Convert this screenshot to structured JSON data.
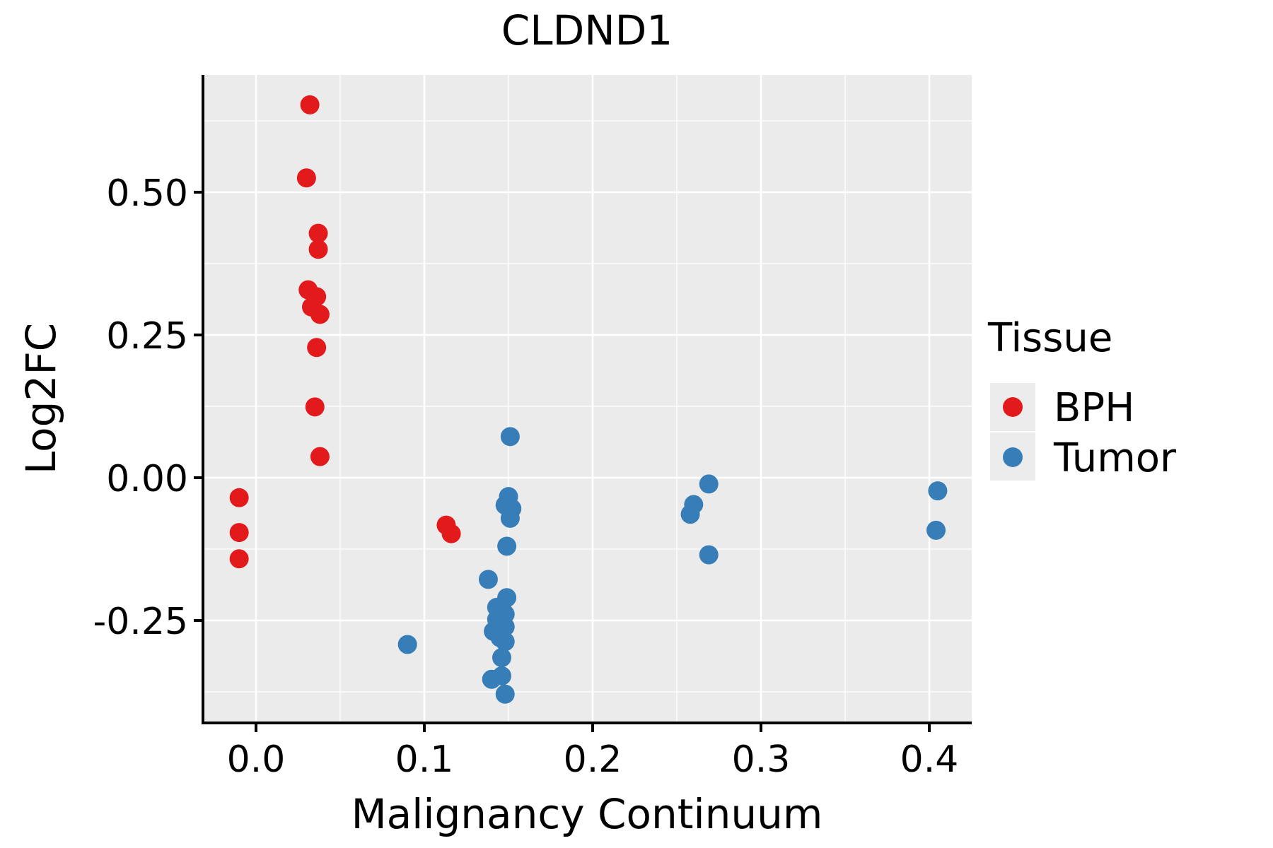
{
  "figure": {
    "title": "CLDND1",
    "background": "#FFFFFF"
  },
  "colors": {
    "panel_background": "#EBEBEB",
    "gridline": "#FFFFFF",
    "axis_line": "#000000",
    "text": "#000000",
    "legend_key_background": "#ECECEC",
    "bph": "#E31A1C",
    "tumor": "#377EB8"
  },
  "legend": {
    "title": "Tissue",
    "entries": [
      {
        "label": "BPH",
        "color": "#E31A1C"
      },
      {
        "label": "Tumor",
        "color": "#377EB8"
      }
    ]
  },
  "chart_data": {
    "type": "scatter",
    "title": "CLDND1",
    "xlabel": "Malignancy Continuum",
    "ylabel": "Log2FC",
    "xlim": [
      -0.0315,
      0.4252
    ],
    "ylim": [
      -0.4294,
      0.7054
    ],
    "grid": true,
    "legend_position": "right",
    "x_major_ticks": [
      0.0,
      0.1,
      0.2,
      0.3,
      0.4
    ],
    "x_tick_labels": [
      "0.0",
      "0.1",
      "0.2",
      "0.3",
      "0.4"
    ],
    "x_minor_ticks": [
      0.05,
      0.15,
      0.25,
      0.35
    ],
    "y_major_ticks": [
      0.5,
      0.25,
      0.0,
      -0.25
    ],
    "y_tick_labels": [
      "0.50",
      "0.25",
      "0.00",
      "-0.25"
    ],
    "y_minor_ticks": [
      0.625,
      0.375,
      0.125,
      -0.125,
      -0.375
    ],
    "point_radius": 13.5,
    "series": [
      {
        "name": "BPH",
        "color": "#E31A1C",
        "points": [
          [
            0.032,
            0.653
          ],
          [
            0.03,
            0.525
          ],
          [
            0.037,
            0.428
          ],
          [
            0.037,
            0.4
          ],
          [
            0.031,
            0.329
          ],
          [
            0.036,
            0.317
          ],
          [
            0.033,
            0.299
          ],
          [
            0.038,
            0.286
          ],
          [
            0.036,
            0.228
          ],
          [
            0.035,
            0.124
          ],
          [
            0.038,
            0.037
          ],
          [
            -0.01,
            -0.035
          ],
          [
            -0.01,
            -0.096
          ],
          [
            -0.01,
            -0.142
          ],
          [
            0.113,
            -0.083
          ],
          [
            0.116,
            -0.098
          ]
        ]
      },
      {
        "name": "Tumor",
        "color": "#377EB8",
        "points": [
          [
            0.151,
            0.072
          ],
          [
            0.15,
            -0.033
          ],
          [
            0.148,
            -0.048
          ],
          [
            0.152,
            -0.054
          ],
          [
            0.151,
            -0.071
          ],
          [
            0.149,
            -0.12
          ],
          [
            0.138,
            -0.178
          ],
          [
            0.149,
            -0.21
          ],
          [
            0.146,
            -0.225
          ],
          [
            0.143,
            -0.227
          ],
          [
            0.148,
            -0.239
          ],
          [
            0.143,
            -0.248
          ],
          [
            0.148,
            -0.261
          ],
          [
            0.141,
            -0.269
          ],
          [
            0.145,
            -0.28
          ],
          [
            0.148,
            -0.287
          ],
          [
            0.146,
            -0.315
          ],
          [
            0.146,
            -0.347
          ],
          [
            0.14,
            -0.353
          ],
          [
            0.148,
            -0.379
          ],
          [
            0.09,
            -0.292
          ],
          [
            0.269,
            -0.011
          ],
          [
            0.26,
            -0.047
          ],
          [
            0.258,
            -0.064
          ],
          [
            0.269,
            -0.135
          ],
          [
            0.405,
            -0.023
          ],
          [
            0.404,
            -0.092
          ]
        ]
      }
    ]
  }
}
